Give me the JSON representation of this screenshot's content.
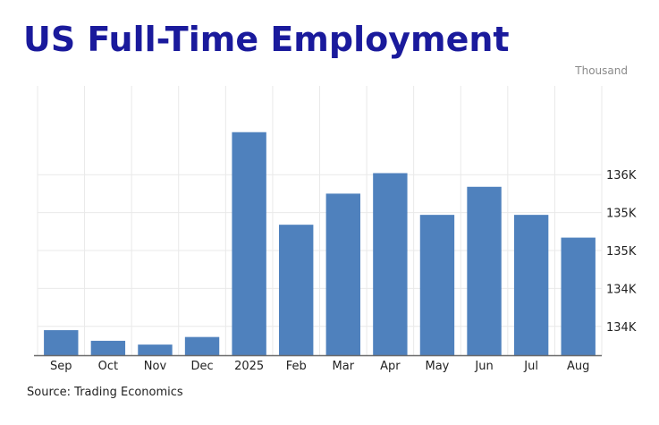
{
  "page": {
    "title": "US Full-Time Employment",
    "source": "Source: Trading Economics"
  },
  "chart_data": {
    "type": "bar",
    "title": "US Full-Time Employment",
    "unit_label": "Thousand",
    "categories": [
      "Sep",
      "Oct",
      "Nov",
      "Dec",
      "2025",
      "Feb",
      "Mar",
      "Apr",
      "May",
      "Jun",
      "Jul",
      "Aug"
    ],
    "values": [
      133630,
      133490,
      133440,
      133540,
      136240,
      135020,
      135430,
      135700,
      135150,
      135520,
      135150,
      134850
    ],
    "ylim": [
      133300,
      136850
    ],
    "y_ticks": [
      {
        "value": 133680,
        "label": "134K"
      },
      {
        "value": 134180,
        "label": "134K"
      },
      {
        "value": 134680,
        "label": "135K"
      },
      {
        "value": 135180,
        "label": "135K"
      },
      {
        "value": 135680,
        "label": "136K"
      }
    ],
    "xlabel": "",
    "ylabel": "",
    "grid": true,
    "colors": {
      "bar": "#4f81bd",
      "grid": "#e9e9e9",
      "axis": "#6b6b6b",
      "tick_text": "#222222",
      "unit_text": "#8a8a8a"
    }
  }
}
